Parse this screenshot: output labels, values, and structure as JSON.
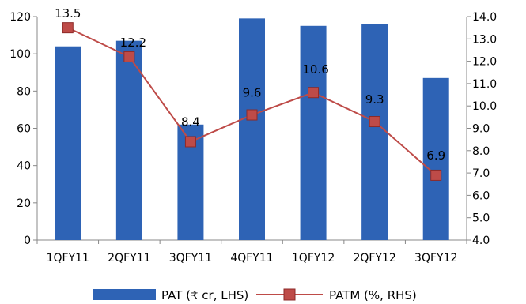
{
  "chart_data": {
    "type": "bar",
    "categories": [
      "1QFY11",
      "2QFY11",
      "3QFY11",
      "4QFY11",
      "1QFY12",
      "2QFY12",
      "3QFY12"
    ],
    "series": [
      {
        "name": "PAT (₹ cr, LHS)",
        "type": "bar",
        "axis": "left",
        "color": "#2E63B5",
        "values": [
          104,
          107,
          62,
          119,
          115,
          116,
          87
        ]
      },
      {
        "name": "PATM (%, RHS)",
        "type": "line",
        "axis": "right",
        "color": "#BE4B48",
        "values": [
          13.5,
          12.2,
          8.4,
          9.6,
          10.6,
          9.3,
          6.9
        ],
        "data_labels": [
          "13.5",
          "12.2",
          "8.4",
          "9.6",
          "10.6",
          "9.3",
          "6.9"
        ]
      }
    ],
    "y_left": {
      "min": 0,
      "max": 120,
      "ticks": [
        "0",
        "20",
        "40",
        "60",
        "80",
        "100",
        "120"
      ]
    },
    "y_right": {
      "min": 4.0,
      "max": 14.0,
      "ticks": [
        "4.0",
        "5.0",
        "6.0",
        "7.0",
        "8.0",
        "9.0",
        "10.0",
        "11.0",
        "12.0",
        "13.0",
        "14.0"
      ]
    },
    "grid": false,
    "legend_position": "bottom"
  }
}
